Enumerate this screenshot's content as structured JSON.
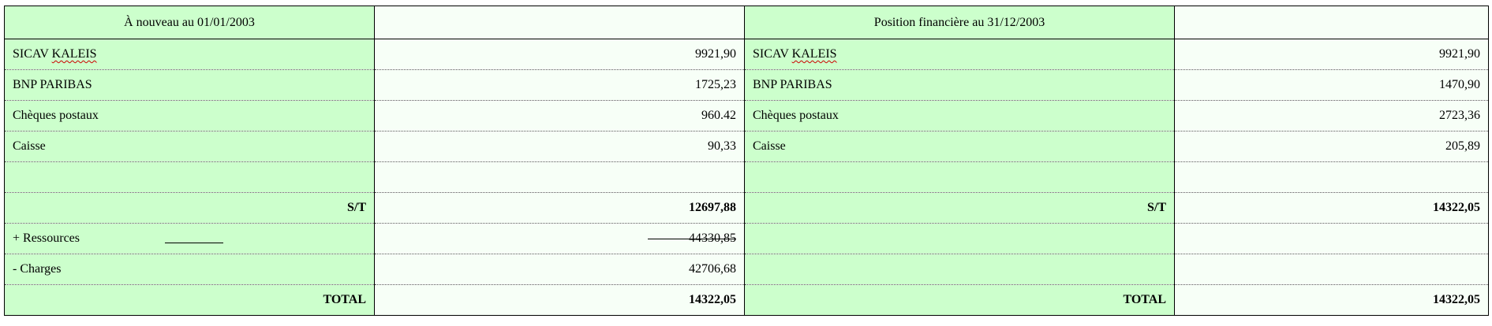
{
  "headers": {
    "left": "À nouveau au 01/01/2003",
    "left_value": "",
    "right": "Position financière au 31/12/2003",
    "right_value": ""
  },
  "rows": [
    {
      "left_label": "SICAV",
      "left_label2": "KALEIS",
      "left_value": "9921,90",
      "right_label": "SICAV",
      "right_label2": "KALEIS",
      "right_value": "9921,90"
    },
    {
      "left_label": "BNP PARIBAS",
      "left_value": "1725,23",
      "right_label": "BNP PARIBAS",
      "right_value": "1470,90"
    },
    {
      "left_label": "Chèques postaux",
      "left_value": "960.42",
      "right_label": "Chèques postaux",
      "right_value": "2723,36"
    },
    {
      "left_label": "Caisse",
      "left_value": "90,33",
      "right_label": "Caisse",
      "right_value": "205,89"
    },
    {
      "left_label": "",
      "left_value": "",
      "right_label": "",
      "right_value": ""
    },
    {
      "left_label": "S/T",
      "left_value": "12697,88",
      "right_label": "S/T",
      "right_value": "14322,05"
    },
    {
      "left_label": "+ Ressources",
      "left_value": "44330,85",
      "right_label": "",
      "right_value": ""
    },
    {
      "left_label": "- Charges",
      "left_value": "42706,68",
      "right_label": "",
      "right_value": ""
    },
    {
      "left_label": "TOTAL",
      "left_value": "14322,05",
      "right_label": "TOTAL",
      "right_value": "14322,05"
    }
  ]
}
